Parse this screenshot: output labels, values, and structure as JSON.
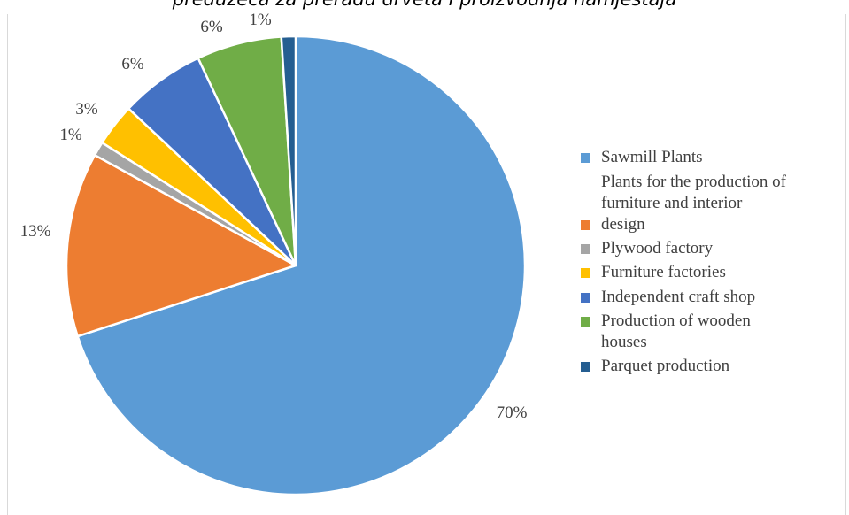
{
  "caption": "preduzeća za preradu drveta i proizvodnja namještaja",
  "chart_data": {
    "type": "pie",
    "title": "",
    "start_angle": 0,
    "direction": "clockwise",
    "slices": [
      {
        "label": "Sawmill Plants",
        "value": 70,
        "value_label": "70%",
        "color": "#5b9bd5"
      },
      {
        "label": "Plants for the production of furniture and interior design",
        "value": 13,
        "value_label": "13%",
        "color": "#ed7d31"
      },
      {
        "label": "Plywood factory",
        "value": 1,
        "value_label": "1%",
        "color": "#a5a5a5"
      },
      {
        "label": "Furniture factories",
        "value": 3,
        "value_label": "3%",
        "color": "#ffc000"
      },
      {
        "label": "Independent craft shop",
        "value": 6,
        "value_label": "6%",
        "color": "#4472c4"
      },
      {
        "label": "Production of wooden houses",
        "value": 6,
        "value_label": "6%",
        "color": "#70ad47"
      },
      {
        "label": "Parquet production",
        "value": 1,
        "value_label": "1%",
        "color": "#255e91"
      }
    ],
    "legend_position": "right"
  },
  "legend": [
    {
      "lines": [
        "Sawmill Plants"
      ]
    },
    {
      "lines": [
        "Plants for the production of",
        "furniture and interior",
        "design"
      ]
    },
    {
      "lines": [
        "Plywood factory"
      ]
    },
    {
      "lines": [
        "Furniture factories"
      ]
    },
    {
      "lines": [
        "Independent craft shop"
      ]
    },
    {
      "lines": [
        "Production of wooden",
        "houses"
      ]
    },
    {
      "lines": [
        "Parquet production"
      ]
    }
  ]
}
